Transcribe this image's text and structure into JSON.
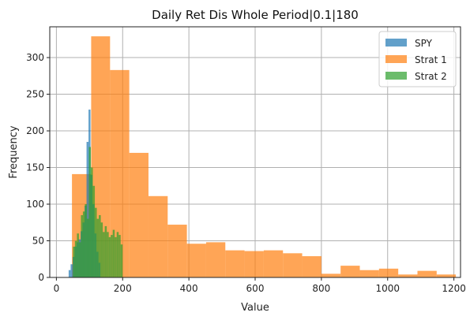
{
  "chart_data": {
    "type": "bar",
    "title": "Daily Ret Dis Whole Period|0.1|180",
    "xlabel": "Value",
    "ylabel": "Frequency",
    "xlim": [
      -20,
      1220
    ],
    "ylim": [
      0,
      342
    ],
    "xticks": [
      0,
      200,
      400,
      600,
      800,
      1000,
      1200
    ],
    "yticks": [
      0,
      50,
      100,
      150,
      200,
      250,
      300
    ],
    "grid": true,
    "legend_position": "top-right",
    "series": [
      {
        "name": "Strat 1",
        "color": "#ff7f0e",
        "opacity": 0.7,
        "bins": [
          {
            "x0": 47,
            "x1": 105,
            "count": 141
          },
          {
            "x0": 105,
            "x1": 162,
            "count": 329
          },
          {
            "x0": 162,
            "x1": 220,
            "count": 283
          },
          {
            "x0": 220,
            "x1": 278,
            "count": 170
          },
          {
            "x0": 278,
            "x1": 336,
            "count": 111
          },
          {
            "x0": 336,
            "x1": 394,
            "count": 72
          },
          {
            "x0": 394,
            "x1": 452,
            "count": 46
          },
          {
            "x0": 452,
            "x1": 510,
            "count": 48
          },
          {
            "x0": 510,
            "x1": 568,
            "count": 37
          },
          {
            "x0": 568,
            "x1": 626,
            "count": 36
          },
          {
            "x0": 626,
            "x1": 684,
            "count": 37
          },
          {
            "x0": 684,
            "x1": 742,
            "count": 33
          },
          {
            "x0": 742,
            "x1": 800,
            "count": 29
          },
          {
            "x0": 800,
            "x1": 858,
            "count": 5
          },
          {
            "x0": 858,
            "x1": 916,
            "count": 16
          },
          {
            "x0": 916,
            "x1": 974,
            "count": 10
          },
          {
            "x0": 974,
            "x1": 1032,
            "count": 12
          },
          {
            "x0": 1032,
            "x1": 1090,
            "count": 4
          },
          {
            "x0": 1090,
            "x1": 1148,
            "count": 9
          },
          {
            "x0": 1148,
            "x1": 1206,
            "count": 4
          }
        ]
      },
      {
        "name": "SPY",
        "color": "#1f77b4",
        "opacity": 0.7,
        "bins": [
          {
            "x0": 37,
            "x1": 43,
            "count": 10
          },
          {
            "x0": 43,
            "x1": 49,
            "count": 18
          },
          {
            "x0": 49,
            "x1": 55,
            "count": 28
          },
          {
            "x0": 55,
            "x1": 61,
            "count": 42
          },
          {
            "x0": 61,
            "x1": 67,
            "count": 48
          },
          {
            "x0": 67,
            "x1": 73,
            "count": 52
          },
          {
            "x0": 73,
            "x1": 79,
            "count": 63
          },
          {
            "x0": 79,
            "x1": 85,
            "count": 75
          },
          {
            "x0": 85,
            "x1": 91,
            "count": 98
          },
          {
            "x0": 91,
            "x1": 97,
            "count": 185
          },
          {
            "x0": 97,
            "x1": 103,
            "count": 229
          },
          {
            "x0": 103,
            "x1": 109,
            "count": 140
          },
          {
            "x0": 109,
            "x1": 115,
            "count": 100
          },
          {
            "x0": 115,
            "x1": 121,
            "count": 60
          },
          {
            "x0": 121,
            "x1": 127,
            "count": 35
          },
          {
            "x0": 127,
            "x1": 133,
            "count": 20
          }
        ]
      },
      {
        "name": "Strat 2",
        "color": "#2ca02c",
        "opacity": 0.7,
        "bins": [
          {
            "x0": 50,
            "x1": 56,
            "count": 42
          },
          {
            "x0": 56,
            "x1": 62,
            "count": 50
          },
          {
            "x0": 62,
            "x1": 68,
            "count": 60
          },
          {
            "x0": 68,
            "x1": 74,
            "count": 48
          },
          {
            "x0": 74,
            "x1": 80,
            "count": 85
          },
          {
            "x0": 80,
            "x1": 86,
            "count": 90
          },
          {
            "x0": 86,
            "x1": 92,
            "count": 100
          },
          {
            "x0": 92,
            "x1": 98,
            "count": 80
          },
          {
            "x0": 98,
            "x1": 104,
            "count": 178
          },
          {
            "x0": 104,
            "x1": 110,
            "count": 150
          },
          {
            "x0": 110,
            "x1": 116,
            "count": 125
          },
          {
            "x0": 116,
            "x1": 122,
            "count": 95
          },
          {
            "x0": 122,
            "x1": 128,
            "count": 80
          },
          {
            "x0": 128,
            "x1": 134,
            "count": 85
          },
          {
            "x0": 134,
            "x1": 140,
            "count": 75
          },
          {
            "x0": 140,
            "x1": 146,
            "count": 62
          },
          {
            "x0": 146,
            "x1": 152,
            "count": 70
          },
          {
            "x0": 152,
            "x1": 158,
            "count": 62
          },
          {
            "x0": 158,
            "x1": 164,
            "count": 55
          },
          {
            "x0": 164,
            "x1": 170,
            "count": 58
          },
          {
            "x0": 170,
            "x1": 176,
            "count": 65
          },
          {
            "x0": 176,
            "x1": 182,
            "count": 55
          },
          {
            "x0": 182,
            "x1": 188,
            "count": 62
          },
          {
            "x0": 188,
            "x1": 194,
            "count": 58
          },
          {
            "x0": 194,
            "x1": 200,
            "count": 45
          }
        ]
      }
    ],
    "legend_order": [
      "SPY",
      "Strat 1",
      "Strat 2"
    ]
  }
}
